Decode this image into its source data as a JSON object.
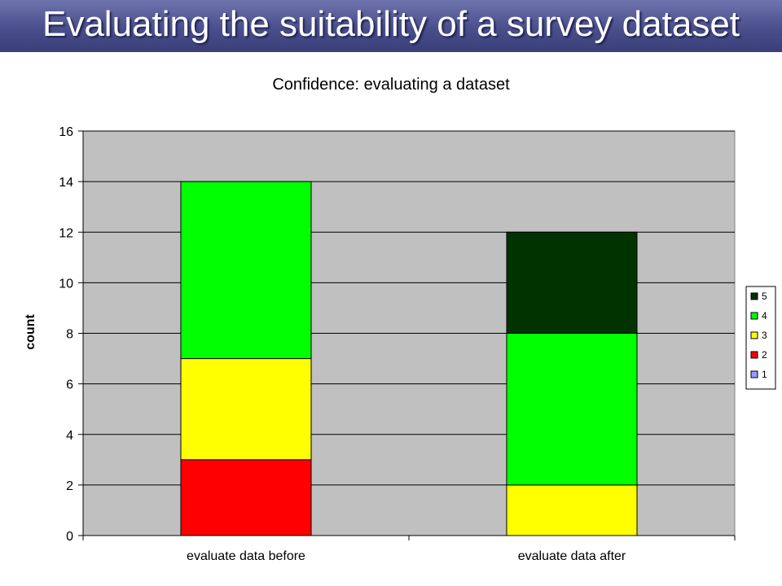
{
  "slide": {
    "title": "Evaluating the suitability of a survey dataset",
    "header_color": "#4a4f8c"
  },
  "chart_data": {
    "type": "bar",
    "stacked": true,
    "title": "Confidence: evaluating a dataset",
    "xlabel": "",
    "ylabel": "count",
    "ylim": [
      0,
      16
    ],
    "yticks": [
      0,
      2,
      4,
      6,
      8,
      10,
      12,
      14,
      16
    ],
    "grid": true,
    "plot_background": "#c0c0c0",
    "legend_position": "right",
    "categories": [
      "evaluate data before",
      "evaluate data after"
    ],
    "series": [
      {
        "name": "1",
        "color": "#9999ff",
        "values": [
          0,
          0
        ]
      },
      {
        "name": "2",
        "color": "#ff0000",
        "values": [
          3,
          0
        ]
      },
      {
        "name": "3",
        "color": "#ffff00",
        "values": [
          4,
          2
        ]
      },
      {
        "name": "4",
        "color": "#00ff00",
        "values": [
          7,
          6
        ]
      },
      {
        "name": "5",
        "color": "#003300",
        "values": [
          0,
          4
        ]
      }
    ]
  }
}
